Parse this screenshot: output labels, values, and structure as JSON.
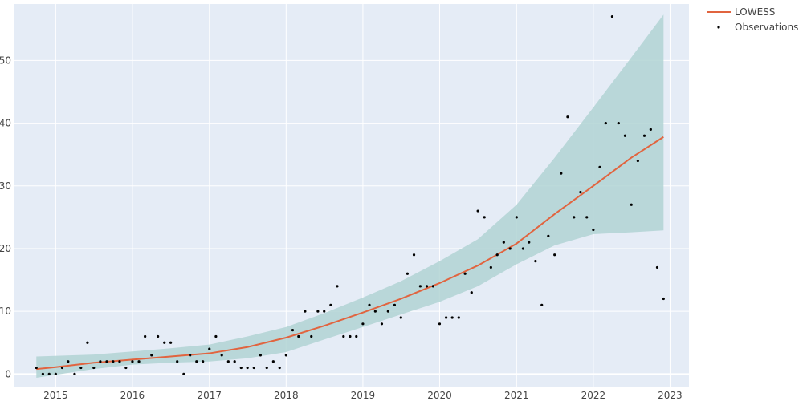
{
  "chart_data": {
    "type": "scatter",
    "x_axis": {
      "type": "date",
      "range": [
        "2014-06-15",
        "2023-04-01"
      ],
      "ticks": [
        "2015",
        "2016",
        "2017",
        "2018",
        "2019",
        "2020",
        "2021",
        "2022",
        "2023"
      ]
    },
    "y_axis": {
      "range": [
        -2,
        59
      ],
      "ticks": [
        0,
        10,
        20,
        30,
        40,
        50
      ]
    },
    "grid": true,
    "legend_position": "top-right",
    "series": [
      {
        "name": "LOWESS",
        "kind": "line",
        "color": "#e1643f",
        "points": [
          [
            "2014-10-01",
            0.8
          ],
          [
            "2015-01-01",
            1.1
          ],
          [
            "2015-07-01",
            1.8
          ],
          [
            "2016-01-01",
            2.3
          ],
          [
            "2016-07-01",
            2.8
          ],
          [
            "2017-01-01",
            3.3
          ],
          [
            "2017-07-01",
            4.3
          ],
          [
            "2018-01-01",
            5.8
          ],
          [
            "2018-07-01",
            7.7
          ],
          [
            "2019-01-01",
            9.8
          ],
          [
            "2019-07-01",
            12.0
          ],
          [
            "2020-01-01",
            14.5
          ],
          [
            "2020-07-01",
            17.3
          ],
          [
            "2021-01-01",
            20.8
          ],
          [
            "2021-07-01",
            25.5
          ],
          [
            "2022-01-01",
            30.0
          ],
          [
            "2022-07-01",
            34.5
          ],
          [
            "2022-12-01",
            37.8
          ]
        ]
      },
      {
        "name": "Observations",
        "kind": "markers",
        "color": "#000000",
        "points": [
          [
            "2014-10-01",
            1
          ],
          [
            "2014-11-01",
            0
          ],
          [
            "2014-12-01",
            0
          ],
          [
            "2015-01-01",
            0
          ],
          [
            "2015-02-01",
            1
          ],
          [
            "2015-03-01",
            2
          ],
          [
            "2015-04-01",
            0
          ],
          [
            "2015-05-01",
            1
          ],
          [
            "2015-06-01",
            5
          ],
          [
            "2015-07-01",
            1
          ],
          [
            "2015-08-01",
            2
          ],
          [
            "2015-09-01",
            2
          ],
          [
            "2015-10-01",
            2
          ],
          [
            "2015-11-01",
            2
          ],
          [
            "2015-12-01",
            1
          ],
          [
            "2016-01-01",
            2
          ],
          [
            "2016-02-01",
            2
          ],
          [
            "2016-03-01",
            6
          ],
          [
            "2016-04-01",
            3
          ],
          [
            "2016-05-01",
            6
          ],
          [
            "2016-06-01",
            5
          ],
          [
            "2016-07-01",
            5
          ],
          [
            "2016-08-01",
            2
          ],
          [
            "2016-09-01",
            0
          ],
          [
            "2016-10-01",
            3
          ],
          [
            "2016-11-01",
            2
          ],
          [
            "2016-12-01",
            2
          ],
          [
            "2017-01-01",
            4
          ],
          [
            "2017-02-01",
            6
          ],
          [
            "2017-03-01",
            3
          ],
          [
            "2017-04-01",
            2
          ],
          [
            "2017-05-01",
            2
          ],
          [
            "2017-06-01",
            1
          ],
          [
            "2017-07-01",
            1
          ],
          [
            "2017-08-01",
            1
          ],
          [
            "2017-09-01",
            3
          ],
          [
            "2017-10-01",
            1
          ],
          [
            "2017-11-01",
            2
          ],
          [
            "2017-12-01",
            1
          ],
          [
            "2018-01-01",
            3
          ],
          [
            "2018-02-01",
            7
          ],
          [
            "2018-03-01",
            6
          ],
          [
            "2018-04-01",
            10
          ],
          [
            "2018-05-01",
            6
          ],
          [
            "2018-06-01",
            10
          ],
          [
            "2018-07-01",
            10
          ],
          [
            "2018-08-01",
            11
          ],
          [
            "2018-09-01",
            14
          ],
          [
            "2018-10-01",
            6
          ],
          [
            "2018-11-01",
            6
          ],
          [
            "2018-12-01",
            6
          ],
          [
            "2019-01-01",
            8
          ],
          [
            "2019-02-01",
            11
          ],
          [
            "2019-03-01",
            10
          ],
          [
            "2019-04-01",
            8
          ],
          [
            "2019-05-01",
            10
          ],
          [
            "2019-06-01",
            11
          ],
          [
            "2019-07-01",
            9
          ],
          [
            "2019-08-01",
            16
          ],
          [
            "2019-09-01",
            19
          ],
          [
            "2019-10-01",
            14
          ],
          [
            "2019-11-01",
            14
          ],
          [
            "2019-12-01",
            14
          ],
          [
            "2020-01-01",
            8
          ],
          [
            "2020-02-01",
            9
          ],
          [
            "2020-03-01",
            9
          ],
          [
            "2020-04-01",
            9
          ],
          [
            "2020-05-01",
            16
          ],
          [
            "2020-06-01",
            13
          ],
          [
            "2020-07-01",
            26
          ],
          [
            "2020-08-01",
            25
          ],
          [
            "2020-09-01",
            17
          ],
          [
            "2020-10-01",
            19
          ],
          [
            "2020-11-01",
            21
          ],
          [
            "2020-12-01",
            20
          ],
          [
            "2021-01-01",
            25
          ],
          [
            "2021-02-01",
            20
          ],
          [
            "2021-03-01",
            21
          ],
          [
            "2021-04-01",
            18
          ],
          [
            "2021-05-01",
            11
          ],
          [
            "2021-06-01",
            22
          ],
          [
            "2021-07-01",
            19
          ],
          [
            "2021-08-01",
            32
          ],
          [
            "2021-09-01",
            41
          ],
          [
            "2021-10-01",
            25
          ],
          [
            "2021-11-01",
            29
          ],
          [
            "2021-12-01",
            25
          ],
          [
            "2022-01-01",
            23
          ],
          [
            "2022-02-01",
            33
          ],
          [
            "2022-03-01",
            40
          ],
          [
            "2022-04-01",
            57
          ],
          [
            "2022-05-01",
            40
          ],
          [
            "2022-06-01",
            38
          ],
          [
            "2022-07-01",
            27
          ],
          [
            "2022-08-01",
            34
          ],
          [
            "2022-09-01",
            38
          ],
          [
            "2022-10-01",
            39
          ],
          [
            "2022-11-01",
            17
          ],
          [
            "2022-12-01",
            12
          ]
        ]
      },
      {
        "kind": "band",
        "color": "#b2d4d3",
        "points": [
          [
            "2014-10-01",
            -0.6,
            2.8
          ],
          [
            "2015-07-01",
            0.8,
            3.1
          ],
          [
            "2016-01-01",
            1.5,
            3.6
          ],
          [
            "2016-07-01",
            1.8,
            4.1
          ],
          [
            "2017-01-01",
            2.0,
            4.7
          ],
          [
            "2017-07-01",
            2.5,
            6.0
          ],
          [
            "2018-01-01",
            3.5,
            7.5
          ],
          [
            "2018-07-01",
            5.5,
            9.7
          ],
          [
            "2019-01-01",
            7.5,
            12.2
          ],
          [
            "2019-07-01",
            9.5,
            14.8
          ],
          [
            "2020-01-01",
            11.5,
            18.0
          ],
          [
            "2020-07-01",
            14.0,
            21.5
          ],
          [
            "2021-01-01",
            17.5,
            27.0
          ],
          [
            "2021-07-01",
            20.5,
            34.5
          ],
          [
            "2022-01-01",
            22.3,
            42.5
          ],
          [
            "2022-07-01",
            22.6,
            50.5
          ],
          [
            "2022-12-01",
            22.9,
            57.3
          ]
        ]
      }
    ]
  }
}
